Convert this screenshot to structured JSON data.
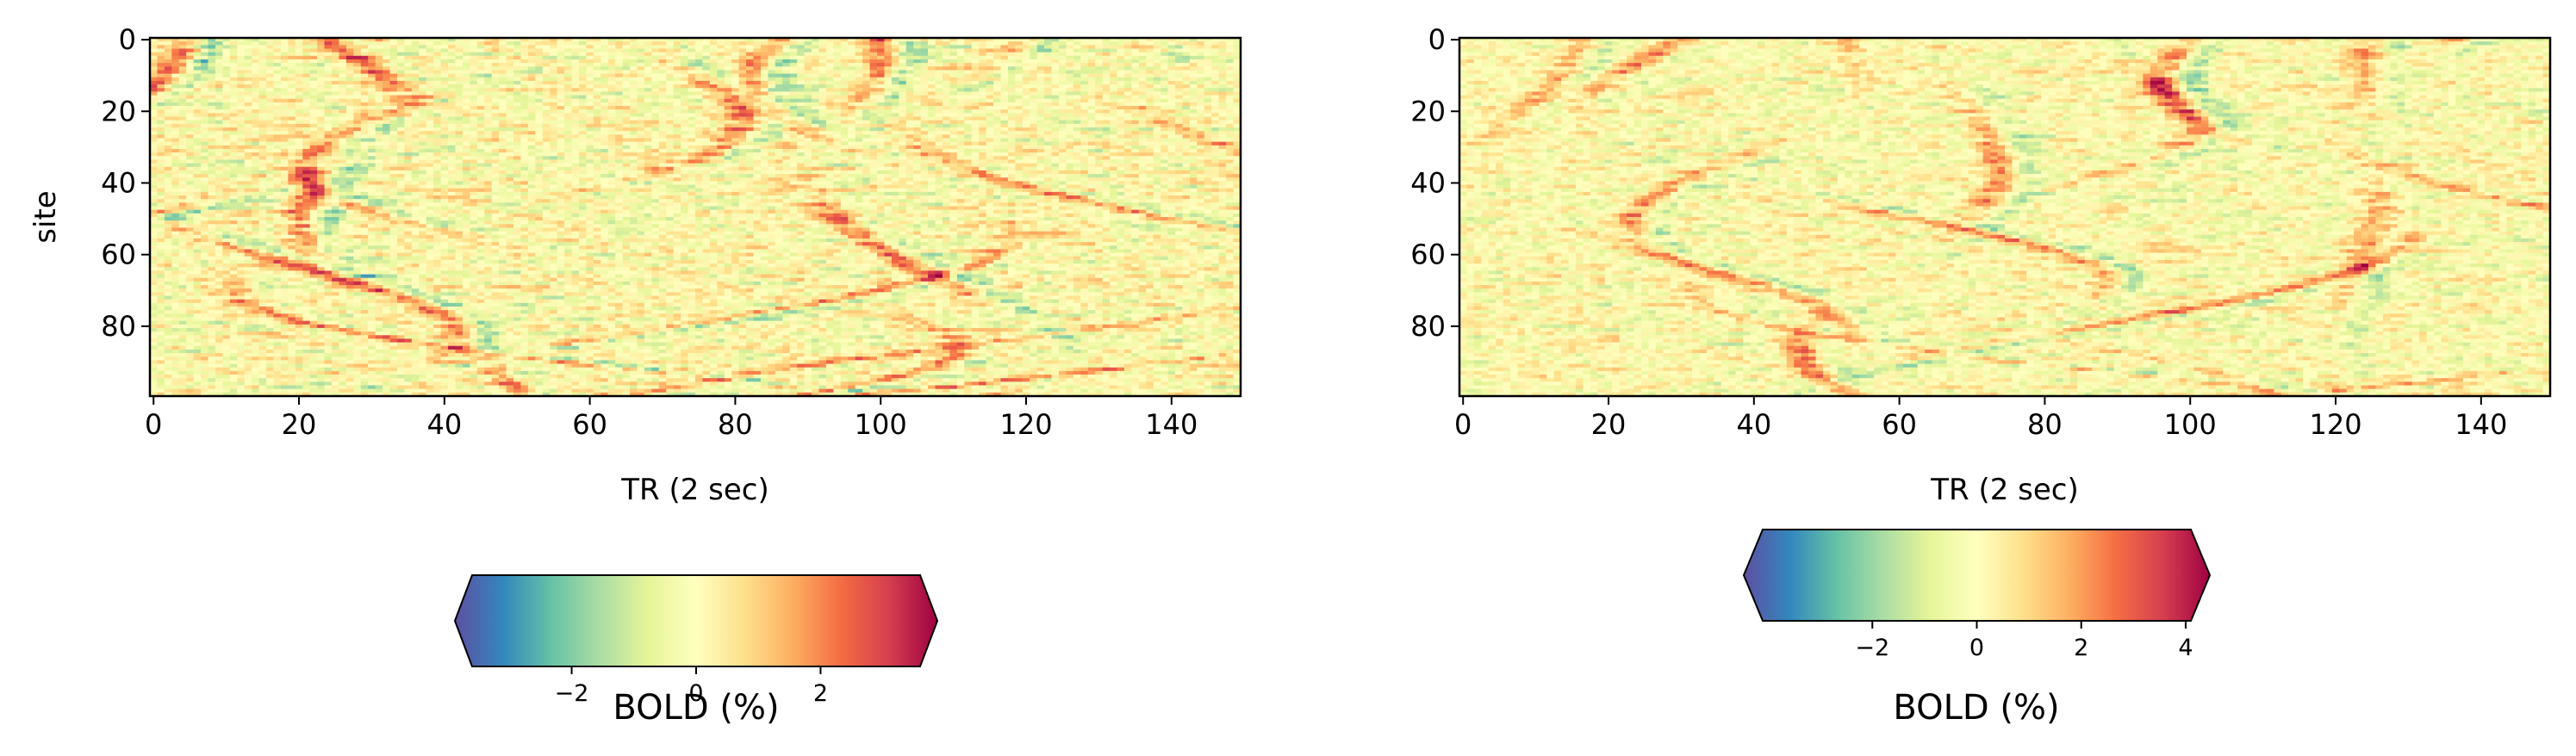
{
  "chart_data": [
    {
      "type": "heatmap",
      "xlabel": "TR (2 sec)",
      "ylabel": "site",
      "x_ticks": [
        0,
        20,
        40,
        60,
        80,
        100,
        120,
        140
      ],
      "y_ticks": [
        0,
        20,
        40,
        60,
        80
      ],
      "xlim": [
        0,
        150
      ],
      "ylim": [
        100,
        0
      ],
      "n_rows": 100,
      "n_cols": 150,
      "colormap": "Spectral_r",
      "colorbar": {
        "label": "BOLD (%)",
        "ticks": [
          -2,
          0,
          2
        ],
        "range": [
          -3.6,
          3.6
        ],
        "extend": "both",
        "orientation": "horizontal"
      },
      "pattern_seed": 7,
      "wave_centers": [
        4,
        24,
        30,
        46,
        66,
        86,
        100,
        120,
        140
      ]
    },
    {
      "type": "heatmap",
      "xlabel": "TR (2 sec)",
      "ylabel": "",
      "x_ticks": [
        0,
        20,
        40,
        60,
        80,
        100,
        120,
        140
      ],
      "y_ticks": [
        0,
        20,
        40,
        60,
        80
      ],
      "xlim": [
        0,
        150
      ],
      "ylim": [
        100,
        0
      ],
      "n_rows": 100,
      "n_cols": 150,
      "colormap": "Spectral_r",
      "colorbar": {
        "label": "BOLD (%)",
        "ticks": [
          -2,
          0,
          2,
          4
        ],
        "range": [
          -4.1,
          4.1
        ],
        "extend": "both",
        "orientation": "horizontal"
      },
      "pattern_seed": 19,
      "wave_centers": [
        16,
        30,
        52,
        66,
        86,
        100,
        124,
        136
      ]
    }
  ],
  "colors": {
    "colormap_stops": [
      "#5e4fa2",
      "#3288bd",
      "#66c2a5",
      "#abdda4",
      "#e6f598",
      "#ffffbf",
      "#fee08b",
      "#fdae61",
      "#f46d43",
      "#d53e4f",
      "#9e0142"
    ]
  }
}
